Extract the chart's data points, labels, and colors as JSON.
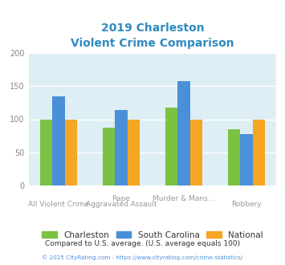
{
  "title_line1": "2019 Charleston",
  "title_line2": "Violent Crime Comparison",
  "title_color": "#2e8bc0",
  "cat_labels_top": [
    "",
    "Rape",
    "Murder & Mans...",
    ""
  ],
  "cat_labels_bottom": [
    "All Violent Crime",
    "Aggravated Assault",
    "",
    "Robbery"
  ],
  "charleston": [
    100,
    87,
    117,
    85
  ],
  "south_carolina": [
    135,
    114,
    157,
    78
  ],
  "national": [
    100,
    100,
    100,
    100
  ],
  "charleston_color": "#7cc242",
  "sc_color": "#4a90d9",
  "national_color": "#f5a623",
  "ylim": [
    0,
    200
  ],
  "yticks": [
    0,
    50,
    100,
    150,
    200
  ],
  "bg_color": "#ddeef5",
  "fig_bg": "#ffffff",
  "footnote1": "Compared to U.S. average. (U.S. average equals 100)",
  "footnote1_color": "#333333",
  "footnote2": "© 2025 CityRating.com - https://www.cityrating.com/crime-statistics/",
  "footnote2_color": "#4a90d9",
  "legend_labels": [
    "Charleston",
    "South Carolina",
    "National"
  ],
  "tick_color": "#aaaaaa"
}
